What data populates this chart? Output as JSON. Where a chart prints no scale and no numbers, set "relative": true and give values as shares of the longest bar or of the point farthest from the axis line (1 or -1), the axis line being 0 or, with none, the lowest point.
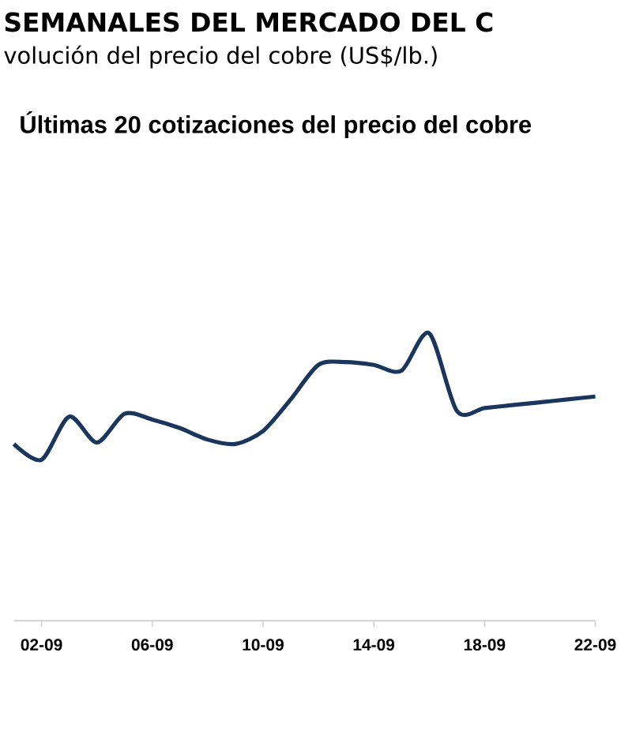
{
  "chart_data": {
    "type": "line",
    "title": "SEMANALES DEL MERCADO DEL C",
    "subtitle": "volución del precio del cobre (US$/lb.)",
    "annotations": [
      "Últimas 20 cotizaciones del precio del cobre"
    ],
    "relative": true,
    "x": [
      "--09-01",
      "--09-02",
      "--09-03",
      "--09-04",
      "--09-05",
      "--09-06",
      "--09-07",
      "--09-08",
      "--09-09",
      "--09-10",
      "--09-11",
      "--09-12",
      "--09-13",
      "--09-14",
      "--09-15",
      "--09-16",
      "--09-17",
      "--09-18",
      "--09-19",
      "--09-20",
      "--09-21",
      "--09-22"
    ],
    "values": [
      0.615,
      0.56,
      0.71,
      0.62,
      0.72,
      0.7,
      0.67,
      0.63,
      0.615,
      0.66,
      0.77,
      0.89,
      0.9,
      0.89,
      0.87,
      1,
      0.73,
      0.74,
      0.75,
      0.76,
      0.77,
      0.78
    ],
    "color": "#1b365d",
    "xlim": [
      "--09-01",
      "--09-22"
    ],
    "xticks": [
      {
        "value": "--09-02",
        "label": "02-09"
      },
      {
        "value": "--09-06",
        "label": "06-09"
      },
      {
        "value": "--09-10",
        "label": "10-09"
      },
      {
        "value": "--09-14",
        "label": "14-09"
      },
      {
        "value": "--09-18",
        "label": "18-09"
      },
      {
        "value": "--09-22",
        "label": "22-09"
      }
    ]
  }
}
